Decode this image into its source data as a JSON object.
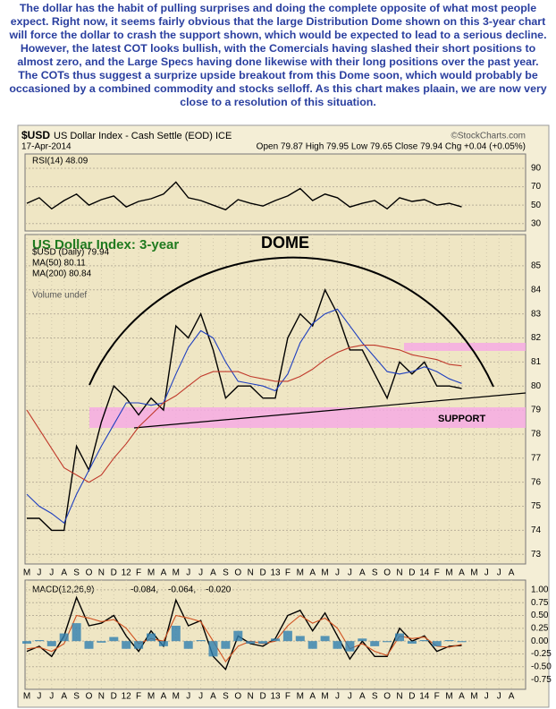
{
  "text": "The dollar has the habit of pulling surprises and doing the complete opposite of what most people expect. Right now, it seems fairly obvious that the large Distribution Dome shown on this 3-year chart will force the dollar to crash the support shown, which would be expected to lead to a serious decline. However, the latest COT looks bullish, with the Comercials having slashed their short positions to almost zero, and the Large Specs having done likewise with their long positions over the past year. The COTs thus suggest a surprize upside breakout from this Dome soon, which would probably be occasioned by a combined commodity and stocks selloff. As this chart makes plaain, we are now very close to a resolution of this situation.",
  "header": {
    "symbol": "$USD",
    "name": "US Dollar Index - Cash Settle (EOD) ICE",
    "date": "17-Apr-2014",
    "quote": "Open 79.87 High 79.95 Low 79.65 Close 79.94 Chg +0.04 (+0.05%)",
    "credit": "©StockCharts.com"
  },
  "chart_data": [
    {
      "type": "line",
      "title": "RSI(14) 48.09",
      "ylim": [
        22,
        105.5
      ],
      "yticks": [
        30,
        50,
        70,
        90
      ],
      "grid": true,
      "series": [
        {
          "color": "#000000",
          "values": [
            52,
            58,
            46,
            55,
            62,
            50,
            56,
            60,
            48,
            54,
            57,
            62,
            75,
            58,
            55,
            50,
            45,
            56,
            52,
            49,
            55,
            60,
            68,
            55,
            62,
            58,
            48,
            52,
            55,
            46,
            58,
            54,
            56,
            50,
            52,
            48.09,
            null,
            null,
            null,
            null
          ]
        }
      ]
    },
    {
      "type": "line",
      "ylim": [
        72.6,
        86.3
      ],
      "yticks": [
        73,
        74,
        75,
        76,
        77,
        78,
        79,
        80,
        81,
        82,
        83,
        84,
        85
      ],
      "grid": true,
      "annotations": [
        "US Dollar Index: 3-year",
        "DOME",
        "SUPPORT"
      ],
      "legend_note": "Volume undef",
      "categories": [
        "M",
        "J",
        "J",
        "A",
        "S",
        "O",
        "N",
        "D",
        "12",
        "F",
        "M",
        "A",
        "M",
        "J",
        "J",
        "A",
        "S",
        "O",
        "N",
        "D",
        "13",
        "F",
        "M",
        "A",
        "M",
        "J",
        "J",
        "A",
        "S",
        "O",
        "N",
        "D",
        "14",
        "F",
        "M",
        "A",
        "M",
        "J",
        "J",
        "A"
      ],
      "series": [
        {
          "name": "$USD (Daily) 79.94",
          "color": "#000000",
          "values": [
            74.5,
            74.5,
            74,
            74,
            77.5,
            76.5,
            78.5,
            80,
            79.5,
            78.8,
            79.5,
            79,
            82.5,
            82,
            83,
            81.5,
            79.5,
            80,
            80,
            79.5,
            79.5,
            82,
            83,
            82.5,
            84,
            83,
            81.5,
            81.5,
            80.5,
            79.5,
            81,
            80.5,
            81,
            80,
            80,
            79.9,
            null,
            null,
            null,
            null
          ]
        },
        {
          "name": "MA(50) 80.11",
          "color": "#1f3fbf",
          "values": [
            75.5,
            75,
            74.7,
            74.3,
            75.5,
            76.5,
            77.5,
            78.4,
            79.3,
            79.3,
            79.2,
            79.3,
            80.5,
            81.6,
            82.3,
            82,
            81,
            80.2,
            80.1,
            80,
            79.8,
            80.5,
            81.8,
            82.6,
            83,
            83.2,
            82.5,
            81.8,
            81.2,
            80.6,
            80.5,
            80.6,
            80.8,
            80.6,
            80.3,
            80.11,
            null,
            null,
            null,
            null
          ]
        },
        {
          "name": "MA(200) 80.84",
          "color": "#c0392b",
          "values": [
            79,
            78.2,
            77.4,
            76.6,
            76.3,
            76,
            76.3,
            77,
            77.6,
            78.3,
            78.8,
            79.3,
            79.6,
            80,
            80.4,
            80.6,
            80.6,
            80.6,
            80.4,
            80.3,
            80.2,
            80.2,
            80.4,
            80.7,
            81.1,
            81.4,
            81.6,
            81.7,
            81.7,
            81.6,
            81.5,
            81.3,
            81.2,
            81.1,
            80.9,
            80.84,
            null,
            null,
            null,
            null
          ]
        }
      ]
    },
    {
      "type": "line",
      "label": "MACD(12,26,9)",
      "ylim": [
        -0.94,
        1.19
      ],
      "yticks": [
        {
          "value": 1,
          "label": "1.00"
        },
        0.75,
        {
          "value": 0.5,
          "label": "0.50"
        },
        0.25,
        {
          "value": 0,
          "label": "0.00"
        },
        -0.25,
        {
          "value": -0.5,
          "label": "-0.50"
        },
        -0.75
      ],
      "grid": true,
      "categories": [
        "M",
        "J",
        "J",
        "A",
        "S",
        "O",
        "N",
        "D",
        "12",
        "F",
        "M",
        "A",
        "M",
        "J",
        "J",
        "A",
        "S",
        "O",
        "N",
        "D",
        "13",
        "F",
        "M",
        "A",
        "M",
        "J",
        "J",
        "A",
        "S",
        "O",
        "N",
        "D",
        "14",
        "F",
        "M",
        "A",
        "M",
        "J",
        "J",
        "A"
      ],
      "series": [
        {
          "name": "-0.084,",
          "color": "#000000",
          "values": [
            -0.2,
            -0.1,
            -0.3,
            0.1,
            0.85,
            0.3,
            0.35,
            0.5,
            0.1,
            -0.2,
            0.2,
            -0.1,
            0.8,
            0.3,
            0.4,
            -0.3,
            -0.55,
            0.1,
            -0.05,
            -0.1,
            0.05,
            0.5,
            0.6,
            0.2,
            0.55,
            0.1,
            -0.35,
            0,
            -0.3,
            -0.3,
            0.25,
            0,
            0.1,
            -0.2,
            -0.1,
            -0.084,
            null,
            null,
            null,
            null
          ]
        },
        {
          "name": "-0.064,",
          "color": "#d0501f",
          "values": [
            -0.15,
            -0.12,
            -0.2,
            -0.05,
            0.5,
            0.45,
            0.38,
            0.42,
            0.25,
            -0.05,
            0.05,
            0,
            0.5,
            0.45,
            0.38,
            0,
            -0.4,
            -0.1,
            0,
            -0.05,
            0,
            0.3,
            0.5,
            0.35,
            0.45,
            0.25,
            -0.15,
            -0.05,
            -0.2,
            -0.28,
            0.1,
            0.05,
            0.08,
            -0.1,
            -0.12,
            -0.064,
            null,
            null,
            null,
            null
          ]
        },
        {
          "name": "-0.020",
          "color": "#2f7fb0",
          "type": "bar",
          "values": [
            -0.05,
            0.02,
            -0.1,
            0.15,
            0.35,
            -0.15,
            -0.03,
            0.08,
            -0.15,
            -0.15,
            0.15,
            -0.1,
            0.3,
            -0.15,
            0.02,
            -0.3,
            -0.15,
            0.2,
            -0.05,
            -0.05,
            0.05,
            0.2,
            0.1,
            -0.15,
            0.1,
            -0.15,
            -0.2,
            0.05,
            -0.1,
            -0.02,
            0.15,
            -0.05,
            0.02,
            -0.1,
            0.02,
            -0.02,
            null,
            null,
            null,
            null
          ]
        }
      ]
    }
  ]
}
